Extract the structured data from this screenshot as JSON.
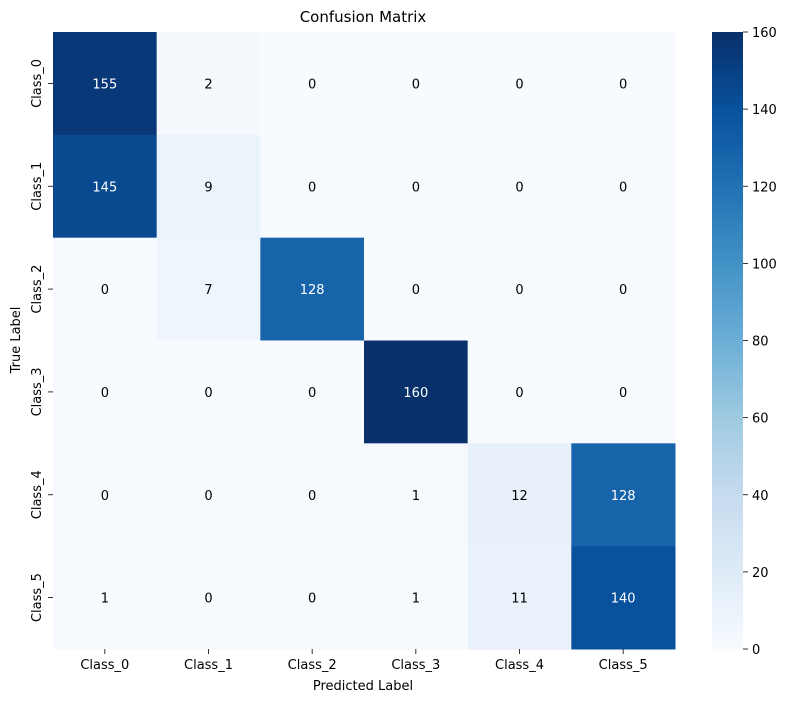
{
  "chart_data": {
    "type": "heatmap",
    "title": "Confusion Matrix",
    "xlabel": "Predicted Label",
    "ylabel": "True Label",
    "x_categories": [
      "Class_0",
      "Class_1",
      "Class_2",
      "Class_3",
      "Class_4",
      "Class_5"
    ],
    "y_categories": [
      "Class_0",
      "Class_1",
      "Class_2",
      "Class_3",
      "Class_4",
      "Class_5"
    ],
    "matrix": [
      [
        155,
        2,
        0,
        0,
        0,
        0
      ],
      [
        145,
        9,
        0,
        0,
        0,
        0
      ],
      [
        0,
        7,
        128,
        0,
        0,
        0
      ],
      [
        0,
        0,
        0,
        160,
        0,
        0
      ],
      [
        0,
        0,
        0,
        1,
        12,
        128
      ],
      [
        1,
        0,
        0,
        1,
        11,
        140
      ]
    ],
    "colormap": "Blues",
    "vmin": 0,
    "vmax": 160,
    "colorbar_ticks": [
      0,
      20,
      40,
      60,
      80,
      100,
      120,
      140,
      160
    ]
  },
  "colors": {
    "blues_stops": [
      "#f7fbff",
      "#deebf7",
      "#c6dbef",
      "#9ecae1",
      "#6baed6",
      "#4292c6",
      "#2171b5",
      "#08519c",
      "#08306b"
    ],
    "text_dark": "#000000",
    "text_light": "#ffffff"
  }
}
